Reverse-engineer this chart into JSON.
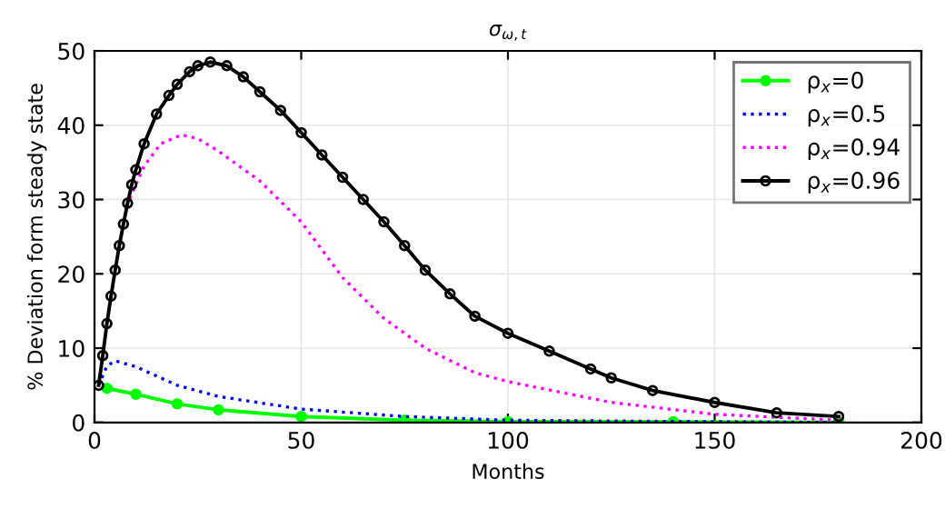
{
  "chart_data": {
    "type": "line",
    "title": "σ$_{ω,t}$",
    "xlabel": "Months",
    "ylabel": "% Deviation form steady state",
    "xlim": [
      0,
      200
    ],
    "ylim": [
      0,
      50
    ],
    "xticks": [
      0,
      50,
      100,
      150,
      200
    ],
    "yticks": [
      0,
      10,
      20,
      30,
      40,
      50
    ],
    "grid": true,
    "legend": "top right",
    "series": [
      {
        "name": "ρ$_{x}$=0",
        "color": "#00ff00",
        "line_style": "solid",
        "marker": "circle",
        "x": [
          3,
          10,
          20,
          30,
          50,
          75,
          100,
          140,
          180
        ],
        "values": [
          4.6,
          3.8,
          2.5,
          1.7,
          0.8,
          0.3,
          0.1,
          0.1,
          0
        ]
      },
      {
        "name": "ρ$_{x}$=0.5",
        "color": "#0000ff",
        "line_style": "dotted",
        "marker": "none",
        "x": [
          1,
          3,
          5,
          10,
          20,
          30,
          50,
          75,
          100,
          150,
          180
        ],
        "values": [
          5,
          7.6,
          8.3,
          7.5,
          5,
          3.5,
          1.8,
          0.8,
          0.3,
          0.1,
          0
        ]
      },
      {
        "name": "ρ$_{x}$=0.94",
        "color": "#ff00ff",
        "line_style": "dotted",
        "marker": "none",
        "x": [
          6,
          8,
          12,
          16,
          21,
          25,
          30,
          40,
          50,
          60,
          70,
          80,
          92,
          100,
          125,
          150,
          180
        ],
        "values": [
          23.8,
          29.5,
          34.5,
          37.5,
          38.7,
          38.2,
          36.5,
          32.5,
          27,
          19.5,
          14,
          10,
          6.7,
          5.5,
          2.7,
          1.1,
          0.3
        ]
      },
      {
        "name": "ρ$_{x}$=0.96",
        "color": "#000000",
        "line_style": "solid",
        "marker": "circle",
        "x": [
          1,
          2,
          3,
          4,
          5,
          6,
          7,
          8,
          9,
          10,
          12,
          15,
          18,
          20,
          23,
          25,
          28,
          32,
          36,
          40,
          45,
          50,
          55,
          60,
          65,
          70,
          75,
          80,
          86,
          92,
          100,
          110,
          120,
          125,
          135,
          150,
          165,
          180
        ],
        "values": [
          5,
          9,
          13.3,
          17,
          20.5,
          23.8,
          26.7,
          29.5,
          32,
          34,
          37.5,
          41.5,
          44,
          45.5,
          47.2,
          48,
          48.5,
          48,
          46.5,
          44.5,
          42,
          39,
          36,
          33,
          30,
          27,
          23.8,
          20.5,
          17.3,
          14.3,
          12,
          9.6,
          7.2,
          6,
          4.3,
          2.7,
          1.3,
          0.8
        ]
      }
    ]
  }
}
